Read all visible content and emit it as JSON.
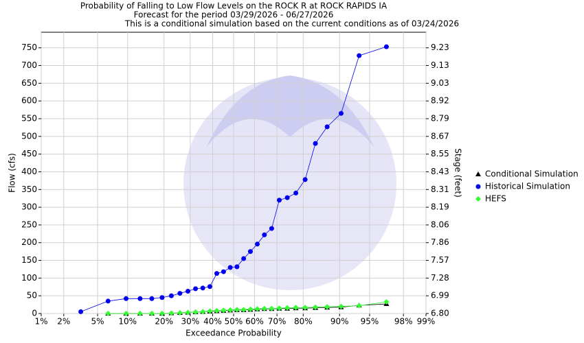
{
  "chart_data": {
    "type": "line",
    "title": "Probability of Falling to Low Flow Levels on the ROCK R at ROCK RAPIDS IA",
    "subtitle": "Forecast for the period 03/29/2026 - 06/27/2026",
    "note": "This is a conditional simulation based on the current conditions as of 03/24/2026",
    "x_label": "Exceedance Probability",
    "y_label": "Flow (cfs)",
    "y2_label": "Stage (feet)",
    "x_scale": "probability",
    "grid": true,
    "legend_position": "right",
    "xlim": [
      1,
      99
    ],
    "xticks": [
      {
        "value": 1,
        "label": "1%"
      },
      {
        "value": 2,
        "label": "2%"
      },
      {
        "value": 5,
        "label": "5%"
      },
      {
        "value": 10,
        "label": "10%"
      },
      {
        "value": 20,
        "label": "20%"
      },
      {
        "value": 30,
        "label": "30%"
      },
      {
        "value": 40,
        "label": "40%"
      },
      {
        "value": 50,
        "label": "50%"
      },
      {
        "value": 60,
        "label": "60%"
      },
      {
        "value": 70,
        "label": "70%"
      },
      {
        "value": 80,
        "label": "80%"
      },
      {
        "value": 90,
        "label": "90%"
      },
      {
        "value": 95,
        "label": "95%"
      },
      {
        "value": 98,
        "label": "98%"
      },
      {
        "value": 99,
        "label": "99%"
      }
    ],
    "ylim": [
      0,
      794
    ],
    "yticks": [
      0,
      50,
      100,
      150,
      200,
      250,
      300,
      350,
      400,
      450,
      500,
      550,
      600,
      650,
      700,
      750
    ],
    "y2ticks": [
      {
        "value": 6.8,
        "label": "6.80"
      },
      {
        "value": 6.99,
        "label": "6.99"
      },
      {
        "value": 7.28,
        "label": "7.28"
      },
      {
        "value": 7.57,
        "label": "7.57"
      },
      {
        "value": 7.86,
        "label": "7.86"
      },
      {
        "value": 8.06,
        "label": "8.06"
      },
      {
        "value": 8.19,
        "label": "8.19"
      },
      {
        "value": 8.31,
        "label": "8.31"
      },
      {
        "value": 8.43,
        "label": "8.43"
      },
      {
        "value": 8.55,
        "label": "8.55"
      },
      {
        "value": 8.67,
        "label": "8.67"
      },
      {
        "value": 8.79,
        "label": "8.79"
      },
      {
        "value": 8.92,
        "label": "8.92"
      },
      {
        "value": 9.03,
        "label": "9.03"
      },
      {
        "value": 9.13,
        "label": "9.13"
      },
      {
        "value": 9.23,
        "label": "9.23"
      }
    ],
    "series": [
      {
        "name": "Conditional Simulation",
        "color": "#000000",
        "marker": "triangle",
        "x": [
          6.45,
          9.68,
          12.9,
          16.13,
          19.35,
          22.58,
          25.81,
          29.03,
          32.26,
          35.48,
          38.71,
          41.94,
          45.16,
          48.39,
          51.61,
          54.84,
          58.06,
          61.29,
          64.52,
          67.74,
          70.97,
          74.19,
          77.42,
          80.65,
          83.87,
          87.1,
          90.32,
          93.55,
          96.77
        ],
        "values": [
          0,
          0,
          0,
          0,
          0,
          1,
          2,
          3,
          4,
          5,
          6,
          7,
          8,
          9,
          10,
          10,
          11,
          12,
          13,
          13,
          14,
          14,
          15,
          15,
          16,
          17,
          18,
          23,
          27
        ]
      },
      {
        "name": "Historical Simulation",
        "color": "#0000ee",
        "marker": "circle",
        "x": [
          3.23,
          6.45,
          9.68,
          12.9,
          16.13,
          19.35,
          22.58,
          25.81,
          29.03,
          32.26,
          35.48,
          38.71,
          41.94,
          45.16,
          48.39,
          51.61,
          54.84,
          58.06,
          61.29,
          64.52,
          67.74,
          70.97,
          74.19,
          77.42,
          80.65,
          83.87,
          87.1,
          90.32,
          93.55,
          96.77
        ],
        "values": [
          5,
          35,
          42,
          42,
          42,
          45,
          50,
          57,
          63,
          70,
          72,
          76,
          113,
          118,
          130,
          132,
          155,
          175,
          196,
          222,
          240,
          320,
          327,
          340,
          378,
          480,
          527,
          565,
          728,
          753
        ]
      },
      {
        "name": "HEFS",
        "color": "#33ff33",
        "marker": "diamond",
        "x": [
          6.45,
          9.68,
          12.9,
          16.13,
          19.35,
          22.58,
          25.81,
          29.03,
          32.26,
          35.48,
          38.71,
          41.94,
          45.16,
          48.39,
          51.61,
          54.84,
          58.06,
          61.29,
          64.52,
          67.74,
          70.97,
          74.19,
          77.42,
          80.65,
          83.87,
          87.1,
          90.32,
          93.55,
          96.77
        ],
        "values": [
          0,
          0,
          0,
          0,
          0,
          1,
          2,
          3,
          4,
          5,
          7,
          8,
          9,
          10,
          11,
          11,
          12,
          13,
          14,
          14,
          15,
          16,
          17,
          17,
          18,
          19,
          20,
          22,
          33
        ]
      }
    ]
  }
}
